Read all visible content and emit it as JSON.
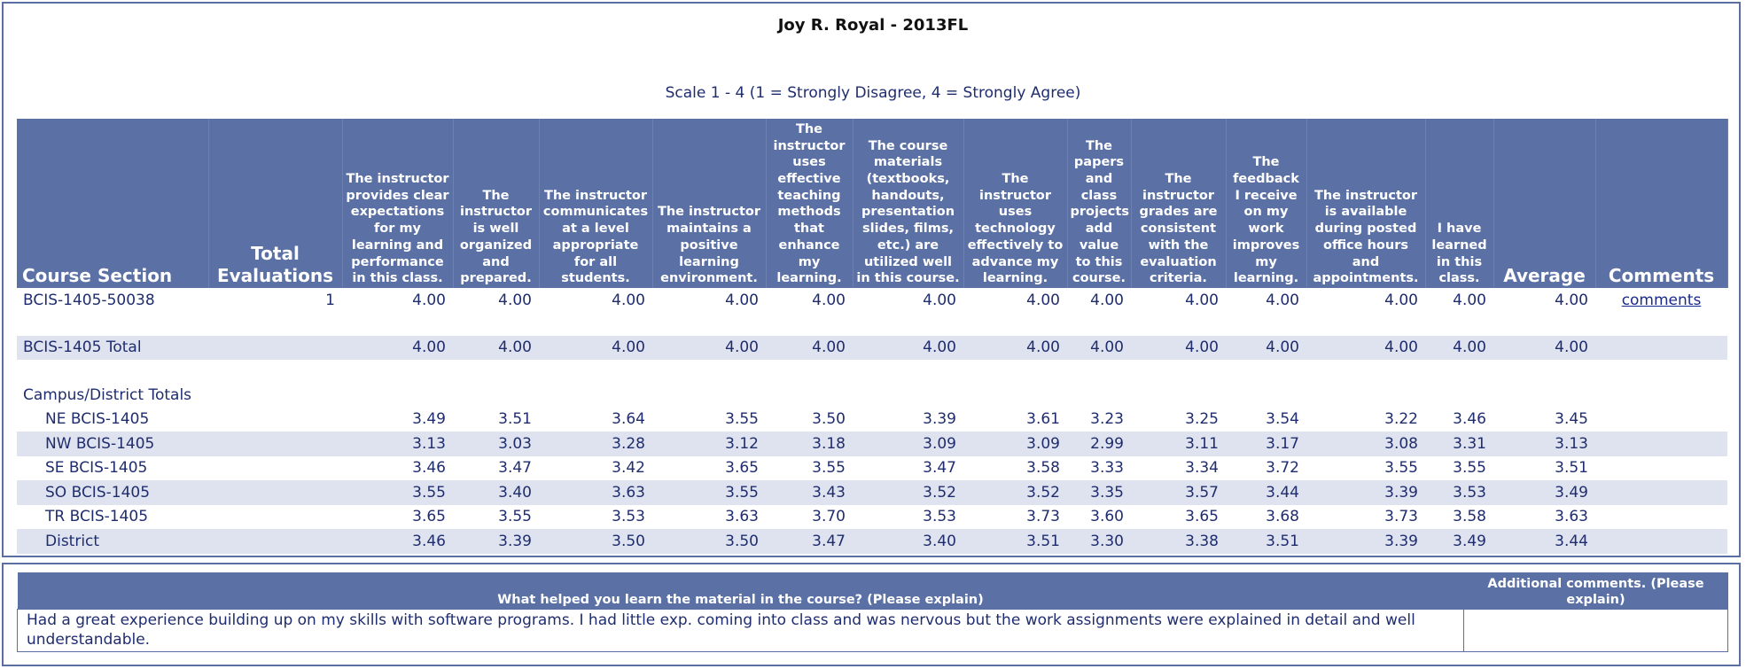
{
  "report": {
    "title": "Joy R. Royal - 2013FL",
    "scale": "Scale 1 - 4 (1 = Strongly Disagree, 4 = Strongly Agree)"
  },
  "headers": {
    "course_section": "Course Section",
    "total_evaluations": "Total Evaluations",
    "q1": "The instructor provides clear expectations for my learning and performance in this class.",
    "q2": "The instructor is well organized and prepared.",
    "q3": "The instructor communicates at a level appropriate for all students.",
    "q4": "The instructor maintains a positive learning environment.",
    "q5": "The instructor uses effective teaching methods that enhance my learning.",
    "q6": "The course materials (textbooks, handouts, presentation slides, films, etc.) are utilized well in this course.",
    "q7": "The instructor uses technology effectively to advance my learning.",
    "q8": "The papers and class projects add value to this course.",
    "q9": "The instructor grades are consistent with the evaluation criteria.",
    "q10": "The feedback I receive on my work improves my learning.",
    "q11": "The instructor is available during posted office hours and appointments.",
    "q12": "I have learned in this class.",
    "average": "Average",
    "comments": "Comments"
  },
  "section_row": {
    "label": "BCIS-1405-50038",
    "total": "1",
    "scores": [
      "4.00",
      "4.00",
      "4.00",
      "4.00",
      "4.00",
      "4.00",
      "4.00",
      "4.00",
      "4.00",
      "4.00",
      "4.00",
      "4.00"
    ],
    "average": "4.00",
    "comments_link": "comments"
  },
  "course_total_row": {
    "label": "BCIS-1405 Total",
    "scores": [
      "4.00",
      "4.00",
      "4.00",
      "4.00",
      "4.00",
      "4.00",
      "4.00",
      "4.00",
      "4.00",
      "4.00",
      "4.00",
      "4.00"
    ],
    "average": "4.00"
  },
  "campus_heading": "Campus/District Totals",
  "campus_rows": [
    {
      "label": "NE BCIS-1405",
      "scores": [
        "3.49",
        "3.51",
        "3.64",
        "3.55",
        "3.50",
        "3.39",
        "3.61",
        "3.23",
        "3.25",
        "3.54",
        "3.22",
        "3.46"
      ],
      "average": "3.45"
    },
    {
      "label": "NW BCIS-1405",
      "scores": [
        "3.13",
        "3.03",
        "3.28",
        "3.12",
        "3.18",
        "3.09",
        "3.09",
        "2.99",
        "3.11",
        "3.17",
        "3.08",
        "3.31"
      ],
      "average": "3.13"
    },
    {
      "label": "SE BCIS-1405",
      "scores": [
        "3.46",
        "3.47",
        "3.42",
        "3.65",
        "3.55",
        "3.47",
        "3.58",
        "3.33",
        "3.34",
        "3.72",
        "3.55",
        "3.55"
      ],
      "average": "3.51"
    },
    {
      "label": "SO BCIS-1405",
      "scores": [
        "3.55",
        "3.40",
        "3.63",
        "3.55",
        "3.43",
        "3.52",
        "3.52",
        "3.35",
        "3.57",
        "3.44",
        "3.39",
        "3.53"
      ],
      "average": "3.49"
    },
    {
      "label": "TR BCIS-1405",
      "scores": [
        "3.65",
        "3.55",
        "3.53",
        "3.63",
        "3.70",
        "3.53",
        "3.73",
        "3.60",
        "3.65",
        "3.68",
        "3.73",
        "3.58"
      ],
      "average": "3.63"
    },
    {
      "label": "District",
      "scores": [
        "3.46",
        "3.39",
        "3.50",
        "3.50",
        "3.47",
        "3.40",
        "3.51",
        "3.30",
        "3.38",
        "3.51",
        "3.39",
        "3.49"
      ],
      "average": "3.44"
    }
  ],
  "comments_table": {
    "header_helped": "What helped you learn the material in the course? (Please explain)",
    "header_additional": "Additional comments. (Please explain)",
    "helped_text": "Had a great experience building up on my skills with software programs. I had little exp. coming into class and was nervous but the work assignments were explained in detail and well understandable.",
    "additional_text": ""
  },
  "colors": {
    "header_bg": "#5b71a5",
    "row_shade": "#dfe3ef",
    "text": "#1f2d6e",
    "border": "#5b6fa3"
  }
}
